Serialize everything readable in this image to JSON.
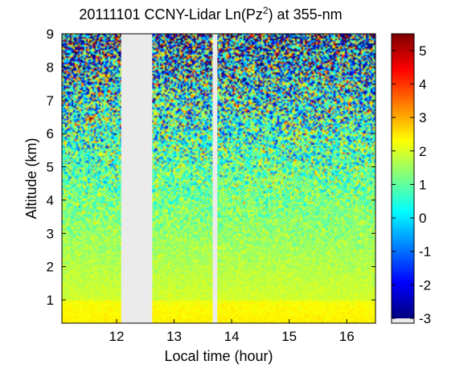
{
  "chart_data": {
    "type": "heatmap",
    "title_main": "20111101 CCNY-Lidar Ln(Pz",
    "title_sup": "2",
    "title_end": ") at 355-nm",
    "xlabel": "Local time (hour)",
    "ylabel": "Altitude (km)",
    "xlim": [
      11.05,
      16.5
    ],
    "ylim": [
      0.3,
      9
    ],
    "xticks": [
      12,
      13,
      14,
      15,
      16
    ],
    "yticks": [
      1,
      2,
      3,
      4,
      5,
      6,
      7,
      8,
      9
    ],
    "colorbar": {
      "min": -3,
      "max": 5.5,
      "ticks": [
        5,
        4,
        3,
        2,
        1,
        0,
        -1,
        -2,
        -3
      ],
      "colormap": "jet",
      "nodata_color": "#ebebeb"
    },
    "data_gaps": [
      {
        "x_start": 12.08,
        "x_end": 12.62
      },
      {
        "x_start": 13.67,
        "x_end": 13.75
      }
    ],
    "feature": {
      "x": 11.55,
      "y": 6.45,
      "value": 5.0
    }
  }
}
